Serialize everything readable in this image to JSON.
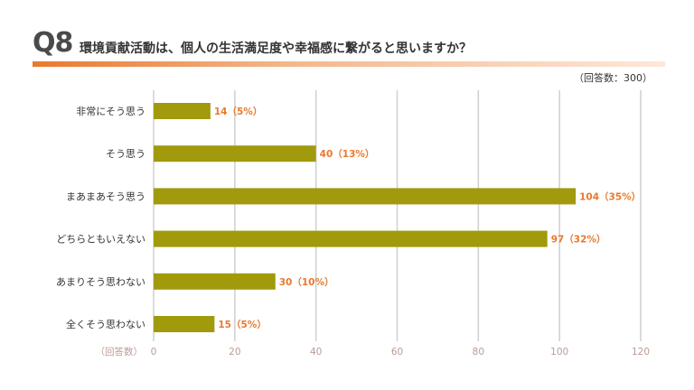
{
  "header": {
    "badge": "Q8",
    "title": "環境貢献活動は、個人の生活満足度や幸福感に繋がると思いますか？"
  },
  "respondents": "（回答数：300）",
  "colors": {
    "bar": "#a09a0c",
    "accent": "#e8792f",
    "grid": "#cfcfcf",
    "tick": "#b89d94"
  },
  "chart_data": {
    "type": "bar",
    "orientation": "horizontal",
    "title": "環境貢献活動は、個人の生活満足度や幸福感に繋がると思いますか？",
    "categories": [
      "非常にそう思う",
      "そう思う",
      "まあまあそう思う",
      "どちらともいえない",
      "あまりそう思わない",
      "全くそう思わない"
    ],
    "values": [
      14,
      40,
      104,
      97,
      30,
      15
    ],
    "value_labels": [
      "14（5%）",
      "40（13%）",
      "104（35%）",
      "97（32%）",
      "30（10%）",
      "15（5%）"
    ],
    "xlabel": "（回答数）",
    "xlim": [
      0,
      120
    ],
    "xticks": [
      0,
      20,
      40,
      60,
      80,
      100,
      120
    ],
    "grid": true,
    "legend": "none"
  }
}
